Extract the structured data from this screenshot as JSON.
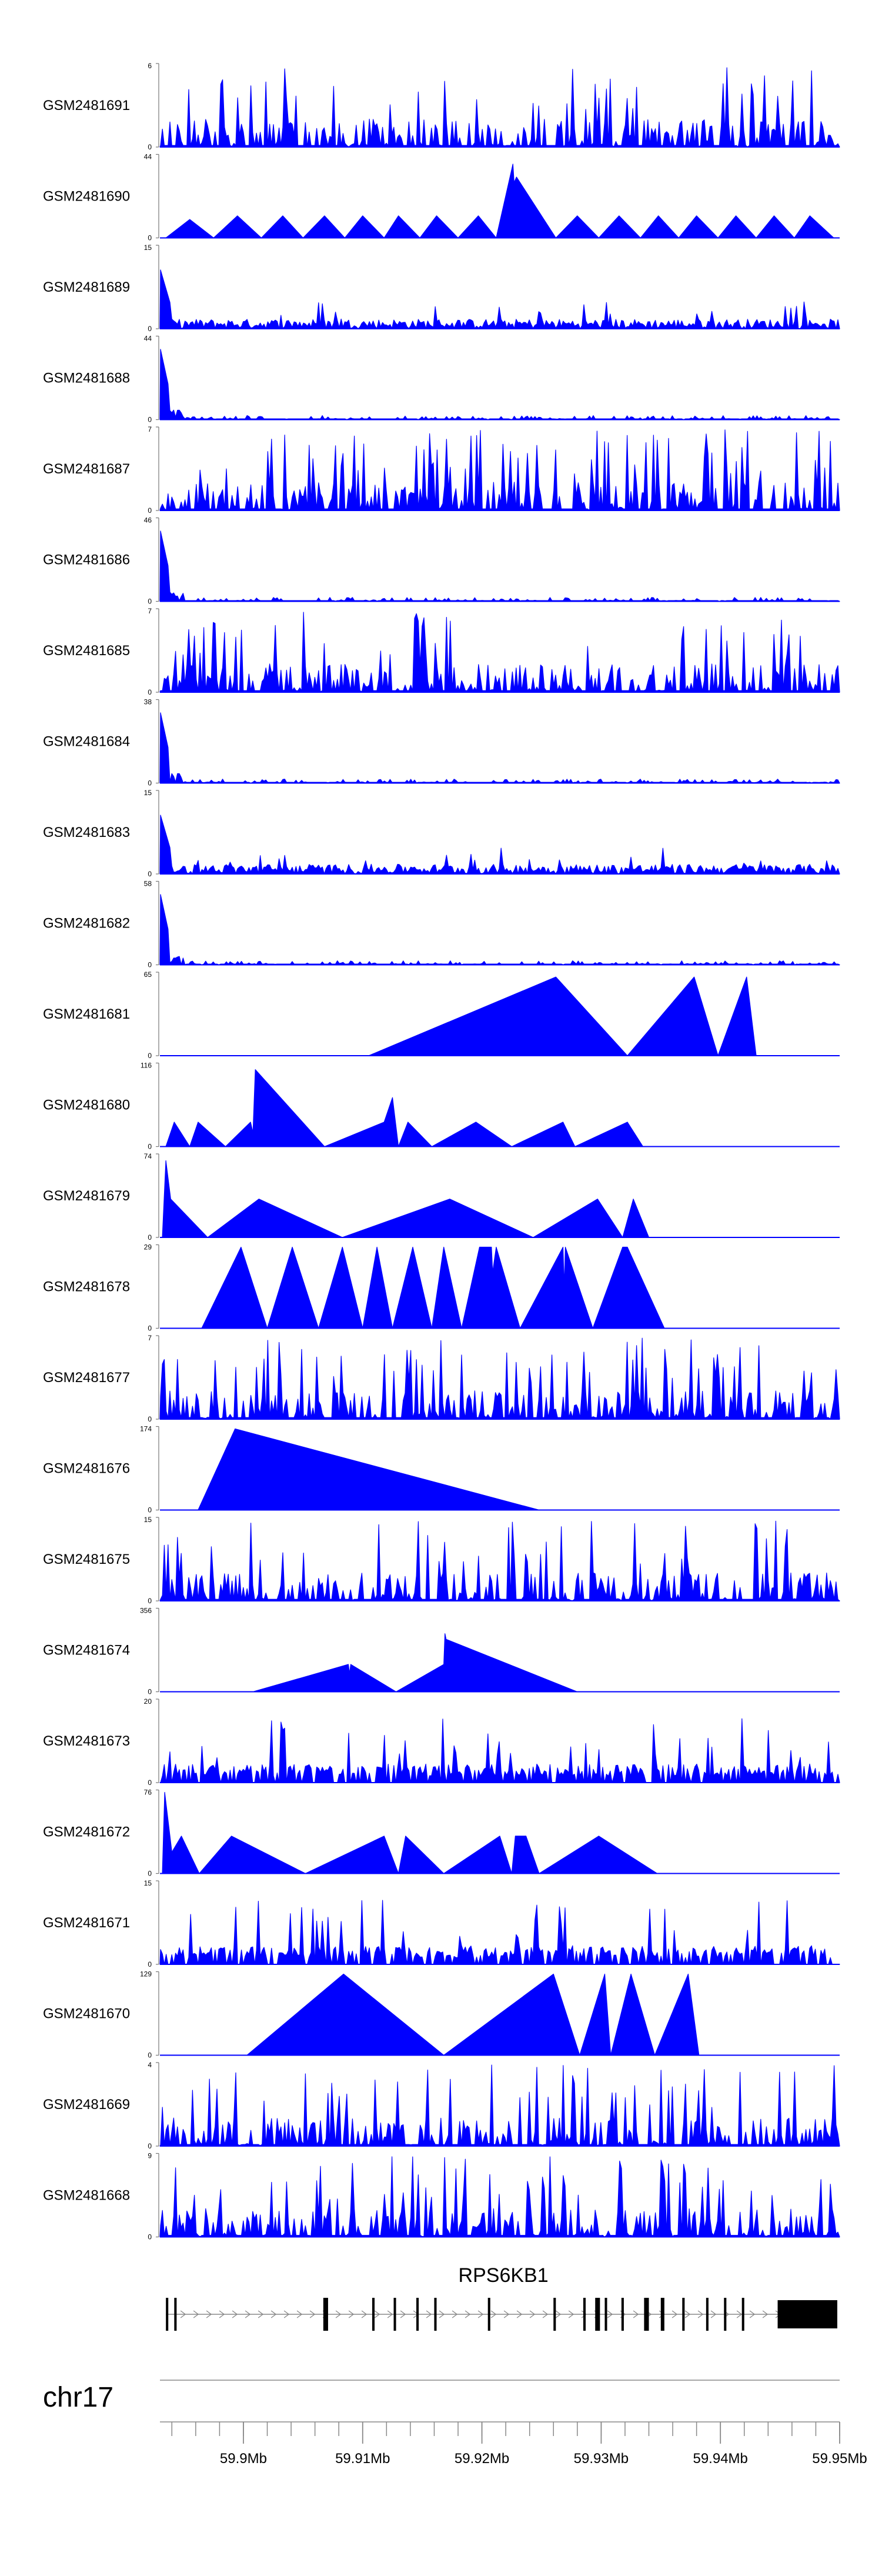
{
  "chart_data": {
    "type": "area",
    "chromosome": "chr17",
    "x_unit": "Mb",
    "xlim": [
      59.893,
      59.95
    ],
    "x_ticks": [
      {
        "value": 59.9,
        "label": "59.9Mb"
      },
      {
        "value": 59.91,
        "label": "59.91Mb"
      },
      {
        "value": 59.92,
        "label": "59.92Mb"
      },
      {
        "value": 59.93,
        "label": "59.93Mb"
      },
      {
        "value": 59.94,
        "label": "59.94Mb"
      },
      {
        "value": 59.95,
        "label": "59.95Mb"
      }
    ],
    "fill_color": "#0000FF",
    "tracks": [
      {
        "name": "GSM2481691",
        "ymax": 6,
        "ymin_label": "0",
        "ymax_label": "6",
        "pattern": "dense",
        "points": []
      },
      {
        "name": "GSM2481690",
        "ymax": 44,
        "ymin_label": "0",
        "ymax_label": "44",
        "pattern": "peaks",
        "points": [
          [
            59.8935,
            0
          ],
          [
            59.8955,
            10
          ],
          [
            59.8975,
            0
          ],
          [
            59.8995,
            12
          ],
          [
            59.9015,
            0
          ],
          [
            59.9033,
            12
          ],
          [
            59.905,
            0
          ],
          [
            59.9068,
            12
          ],
          [
            59.9085,
            0
          ],
          [
            59.91,
            12
          ],
          [
            59.9118,
            0
          ],
          [
            59.913,
            12
          ],
          [
            59.9148,
            0
          ],
          [
            59.9162,
            12
          ],
          [
            59.918,
            0
          ],
          [
            59.9197,
            12
          ],
          [
            59.9212,
            0
          ],
          [
            59.9226,
            40
          ],
          [
            59.9227,
            30
          ],
          [
            59.9229,
            33
          ],
          [
            59.9262,
            0
          ],
          [
            59.928,
            12
          ],
          [
            59.9298,
            0
          ],
          [
            59.9315,
            12
          ],
          [
            59.9333,
            0
          ],
          [
            59.9348,
            12
          ],
          [
            59.9365,
            0
          ],
          [
            59.938,
            12
          ],
          [
            59.9398,
            0
          ],
          [
            59.9413,
            12
          ],
          [
            59.943,
            0
          ],
          [
            59.9445,
            12
          ],
          [
            59.9462,
            0
          ],
          [
            59.9475,
            12
          ],
          [
            59.9495,
            0
          ]
        ]
      },
      {
        "name": "GSM2481689",
        "ymax": 15,
        "ymin_label": "0",
        "ymax_label": "15",
        "pattern": "front",
        "points": []
      },
      {
        "name": "GSM2481688",
        "ymax": 44,
        "ymin_label": "0",
        "ymax_label": "44",
        "pattern": "front-high",
        "points": []
      },
      {
        "name": "GSM2481687",
        "ymax": 7,
        "ymin_label": "0",
        "ymax_label": "7",
        "pattern": "dense",
        "points": []
      },
      {
        "name": "GSM2481686",
        "ymax": 46,
        "ymin_label": "0",
        "ymax_label": "46",
        "pattern": "front-high",
        "points": []
      },
      {
        "name": "GSM2481685",
        "ymax": 7,
        "ymin_label": "0",
        "ymax_label": "7",
        "pattern": "dense",
        "points": []
      },
      {
        "name": "GSM2481684",
        "ymax": 38,
        "ymin_label": "0",
        "ymax_label": "38",
        "pattern": "front-high",
        "points": []
      },
      {
        "name": "GSM2481683",
        "ymax": 15,
        "ymin_label": "0",
        "ymax_label": "15",
        "pattern": "front",
        "points": []
      },
      {
        "name": "GSM2481682",
        "ymax": 58,
        "ymin_label": "0",
        "ymax_label": "58",
        "pattern": "front-high",
        "points": []
      },
      {
        "name": "GSM2481681",
        "ymax": 65,
        "ymin_label": "0",
        "ymax_label": "65",
        "pattern": "peaks",
        "points": [
          [
            59.9105,
            0
          ],
          [
            59.9262,
            63
          ],
          [
            59.9322,
            0
          ],
          [
            59.9378,
            63
          ],
          [
            59.9398,
            0
          ],
          [
            59.9422,
            63
          ],
          [
            59.943,
            0
          ]
        ]
      },
      {
        "name": "GSM2481680",
        "ymax": 116,
        "ymin_label": "0",
        "ymax_label": "116",
        "pattern": "peaks",
        "points": [
          [
            59.8935,
            0
          ],
          [
            59.8942,
            35
          ],
          [
            59.8955,
            0
          ],
          [
            59.8962,
            35
          ],
          [
            59.8985,
            0
          ],
          [
            59.9006,
            35
          ],
          [
            59.9008,
            20
          ],
          [
            59.901,
            110
          ],
          [
            59.9068,
            0
          ],
          [
            59.9118,
            35
          ],
          [
            59.9125,
            70
          ],
          [
            59.913,
            0
          ],
          [
            59.9138,
            35
          ],
          [
            59.9158,
            0
          ],
          [
            59.9195,
            35
          ],
          [
            59.9225,
            0
          ],
          [
            59.9268,
            35
          ],
          [
            59.9278,
            0
          ],
          [
            59.9322,
            35
          ],
          [
            59.9335,
            0
          ]
        ]
      },
      {
        "name": "GSM2481679",
        "ymax": 74,
        "ymin_label": "0",
        "ymax_label": "74",
        "pattern": "peaks",
        "points": [
          [
            59.8932,
            0
          ],
          [
            59.8935,
            70
          ],
          [
            59.8939,
            35
          ],
          [
            59.897,
            0
          ],
          [
            59.9013,
            35
          ],
          [
            59.9083,
            0
          ],
          [
            59.9173,
            35
          ],
          [
            59.9243,
            0
          ],
          [
            59.9297,
            35
          ],
          [
            59.9318,
            0
          ],
          [
            59.9327,
            35
          ],
          [
            59.934,
            0
          ]
        ]
      },
      {
        "name": "GSM2481678",
        "ymax": 29,
        "ymin_label": "0",
        "ymax_label": "29",
        "pattern": "peaks",
        "points": [
          [
            59.8965,
            0
          ],
          [
            59.8998,
            29
          ],
          [
            59.902,
            0
          ],
          [
            59.9041,
            29
          ],
          [
            59.9063,
            0
          ],
          [
            59.9083,
            29
          ],
          [
            59.91,
            0
          ],
          [
            59.9112,
            29
          ],
          [
            59.9125,
            0
          ],
          [
            59.9142,
            29
          ],
          [
            59.9158,
            0
          ],
          [
            59.9168,
            29
          ],
          [
            59.9183,
            0
          ],
          [
            59.9198,
            29
          ],
          [
            59.9208,
            29
          ],
          [
            59.9209,
            20
          ],
          [
            59.9212,
            29
          ],
          [
            59.9232,
            0
          ],
          [
            59.9268,
            29
          ],
          [
            59.9269,
            15
          ],
          [
            59.927,
            29
          ],
          [
            59.9293,
            0
          ],
          [
            59.9318,
            29
          ],
          [
            59.9322,
            29
          ],
          [
            59.9353,
            0
          ]
        ]
      },
      {
        "name": "GSM2481677",
        "ymax": 7,
        "ymin_label": "0",
        "ymax_label": "7",
        "pattern": "dense",
        "points": []
      },
      {
        "name": "GSM2481676",
        "ymax": 174,
        "ymin_label": "0",
        "ymax_label": "174",
        "pattern": "peaks",
        "points": [
          [
            59.8962,
            0
          ],
          [
            59.8993,
            174
          ],
          [
            59.9248,
            0
          ]
        ]
      },
      {
        "name": "GSM2481675",
        "ymax": 15,
        "ymin_label": "0",
        "ymax_label": "15",
        "pattern": "dense",
        "points": []
      },
      {
        "name": "GSM2481674",
        "ymax": 356,
        "ymin_label": "0",
        "ymax_label": "356",
        "pattern": "peaks",
        "points": [
          [
            59.9008,
            0
          ],
          [
            59.9088,
            120
          ],
          [
            59.9089,
            80
          ],
          [
            59.909,
            120
          ],
          [
            59.9128,
            0
          ],
          [
            59.9168,
            120
          ],
          [
            59.9169,
            255
          ],
          [
            59.917,
            230
          ],
          [
            59.928,
            0
          ]
        ]
      },
      {
        "name": "GSM2481673",
        "ymax": 20,
        "ymin_label": "0",
        "ymax_label": "20",
        "pattern": "dense-low",
        "points": []
      },
      {
        "name": "GSM2481672",
        "ymax": 76,
        "ymin_label": "0",
        "ymax_label": "76",
        "pattern": "peaks",
        "points": [
          [
            59.8932,
            0
          ],
          [
            59.8934,
            76
          ],
          [
            59.894,
            20
          ],
          [
            59.8948,
            35
          ],
          [
            59.8963,
            0
          ],
          [
            59.899,
            35
          ],
          [
            59.9052,
            0
          ],
          [
            59.9118,
            35
          ],
          [
            59.913,
            0
          ],
          [
            59.9136,
            35
          ],
          [
            59.9168,
            0
          ],
          [
            59.9215,
            35
          ],
          [
            59.9225,
            0
          ],
          [
            59.9228,
            35
          ],
          [
            59.9237,
            35
          ],
          [
            59.9248,
            0
          ],
          [
            59.9298,
            35
          ],
          [
            59.9347,
            0
          ]
        ]
      },
      {
        "name": "GSM2481671",
        "ymax": 15,
        "ymin_label": "0",
        "ymax_label": "15",
        "pattern": "dense-low",
        "points": []
      },
      {
        "name": "GSM2481670",
        "ymax": 129,
        "ymin_label": "0",
        "ymax_label": "129",
        "pattern": "peaks",
        "points": [
          [
            59.9003,
            0
          ],
          [
            59.9084,
            129
          ],
          [
            59.9168,
            0
          ],
          [
            59.926,
            129
          ],
          [
            59.9282,
            0
          ],
          [
            59.9303,
            129
          ],
          [
            59.9308,
            0
          ],
          [
            59.9325,
            129
          ],
          [
            59.9345,
            0
          ],
          [
            59.9373,
            129
          ],
          [
            59.9382,
            0
          ]
        ]
      },
      {
        "name": "GSM2481669",
        "ymax": 4,
        "ymin_label": "0",
        "ymax_label": "4",
        "pattern": "dense",
        "points": []
      },
      {
        "name": "GSM2481668",
        "ymax": 9,
        "ymin_label": "0",
        "ymax_label": "9",
        "pattern": "dense",
        "points": []
      }
    ],
    "gene": {
      "name": "RPS6KB1",
      "strand": "+",
      "start": 59.8935,
      "end": 59.9498,
      "exons": [
        [
          59.8935,
          59.8937
        ],
        [
          59.8942,
          59.8944
        ],
        [
          59.9067,
          59.9071
        ],
        [
          59.9108,
          59.911
        ],
        [
          59.9126,
          59.9128
        ],
        [
          59.9145,
          59.9147
        ],
        [
          59.916,
          59.9162
        ],
        [
          59.9205,
          59.9207
        ],
        [
          59.926,
          59.9262
        ],
        [
          59.9285,
          59.9287
        ],
        [
          59.9295,
          59.9299
        ],
        [
          59.9303,
          59.9305
        ],
        [
          59.9317,
          59.9319
        ],
        [
          59.9336,
          59.934
        ],
        [
          59.935,
          59.9353
        ],
        [
          59.9368,
          59.937
        ],
        [
          59.9388,
          59.939
        ],
        [
          59.9403,
          59.9405
        ],
        [
          59.9418,
          59.942
        ],
        [
          59.9448,
          59.9498
        ]
      ]
    }
  }
}
